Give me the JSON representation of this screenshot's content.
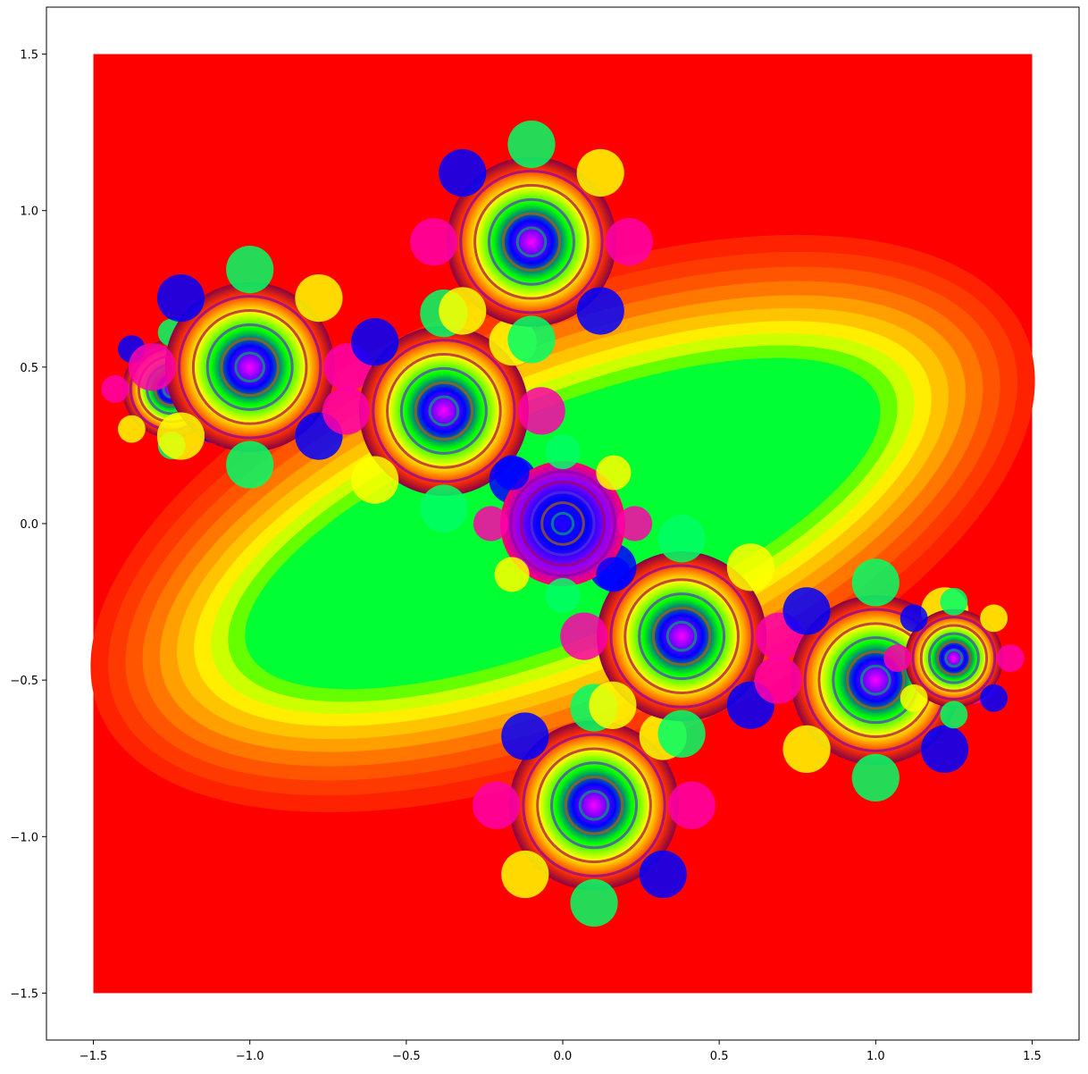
{
  "chart_data": {
    "type": "heatmap",
    "title": "",
    "xlabel": "",
    "ylabel": "",
    "xlim": [
      -1.65,
      1.65
    ],
    "ylim": [
      -1.65,
      1.65
    ],
    "data_extent": {
      "x": [
        -1.5,
        1.5
      ],
      "y": [
        -1.5,
        1.5
      ]
    },
    "x_ticks": [
      {
        "value": -1.5,
        "label": "−1.5"
      },
      {
        "value": -1.0,
        "label": "−1.0"
      },
      {
        "value": -0.5,
        "label": "−0.5"
      },
      {
        "value": 0.0,
        "label": "0.0"
      },
      {
        "value": 0.5,
        "label": "0.5"
      },
      {
        "value": 1.0,
        "label": "1.0"
      },
      {
        "value": 1.5,
        "label": "1.5"
      }
    ],
    "y_ticks": [
      {
        "value": 1.5,
        "label": "1.5"
      },
      {
        "value": 1.0,
        "label": "1.0"
      },
      {
        "value": 0.5,
        "label": "0.5"
      },
      {
        "value": 0.0,
        "label": "0.0"
      },
      {
        "value": -0.5,
        "label": "−0.5"
      },
      {
        "value": -1.0,
        "label": "−1.0"
      },
      {
        "value": -1.5,
        "label": "−1.5"
      }
    ],
    "grid": false,
    "colormap": "hsv",
    "background_color": "#ff0000",
    "content": "Julia set escape-time fractal, two-fold rotationally symmetric, elongated from upper-left to lower-right",
    "fractal_points": [
      {
        "x": -1.25,
        "y": 0.43
      },
      {
        "x": -1.0,
        "y": 0.5
      },
      {
        "x": -0.38,
        "y": 0.36
      },
      {
        "x": -0.1,
        "y": 0.9
      },
      {
        "x": 0.1,
        "y": -0.9
      },
      {
        "x": 0.38,
        "y": -0.36
      },
      {
        "x": 1.0,
        "y": -0.5
      },
      {
        "x": 1.25,
        "y": -0.43
      },
      {
        "x": 0.0,
        "y": 0.0
      }
    ]
  }
}
